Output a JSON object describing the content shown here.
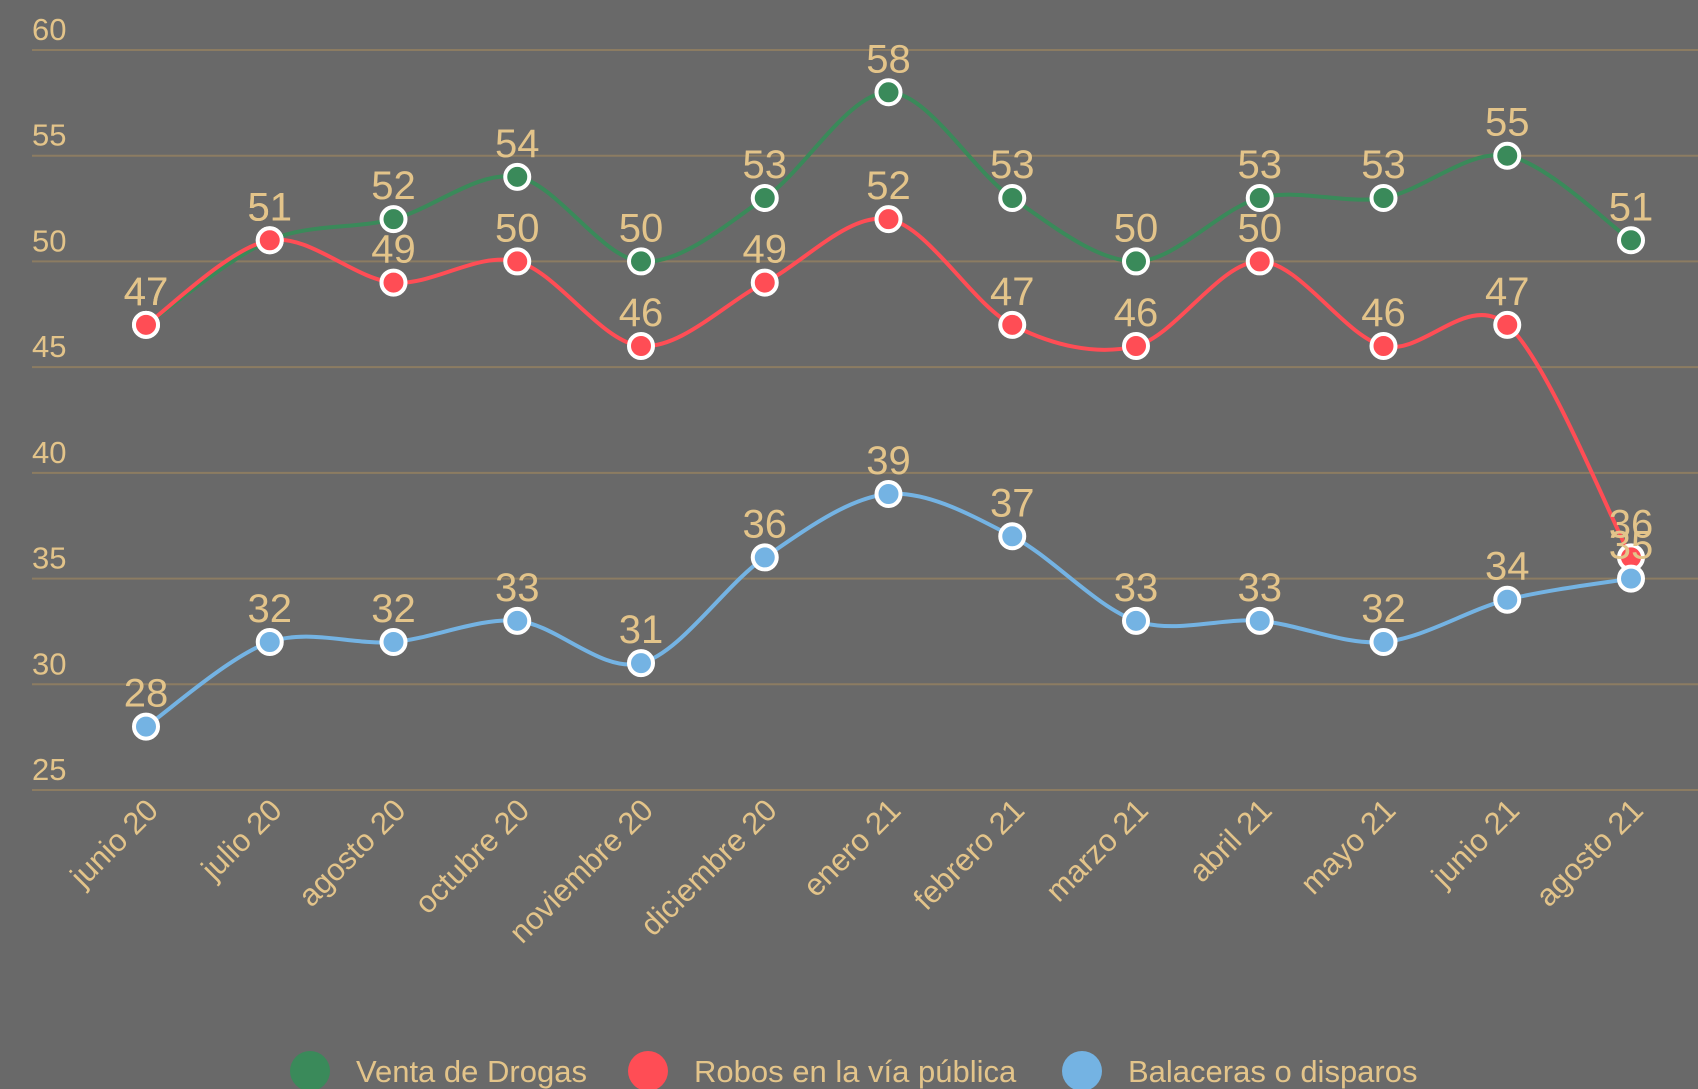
{
  "chart_data": {
    "type": "line",
    "categories": [
      "junio 20",
      "julio 20",
      "agosto 20",
      "octubre 20",
      "noviembre 20",
      "diciembre 20",
      "enero 21",
      "febrero 21",
      "marzo 21",
      "abril 21",
      "mayo 21",
      "junio 21",
      "agosto 21"
    ],
    "series": [
      {
        "name": "Venta de Drogas",
        "color": "#3a8a5a",
        "values": [
          47,
          51,
          52,
          54,
          50,
          53,
          58,
          53,
          50,
          53,
          53,
          55,
          51
        ]
      },
      {
        "name": "Robos en la vía pública",
        "color": "#ff4d55",
        "values": [
          47,
          51,
          49,
          50,
          46,
          49,
          52,
          47,
          46,
          50,
          46,
          47,
          36
        ]
      },
      {
        "name": "Balaceras o disparos",
        "color": "#74b3e3",
        "values": [
          28,
          32,
          32,
          33,
          31,
          36,
          39,
          37,
          33,
          33,
          32,
          34,
          35
        ]
      }
    ],
    "ylim": [
      25,
      60
    ],
    "yticks": [
      25,
      30,
      35,
      40,
      45,
      50,
      55,
      60
    ],
    "grid": true,
    "legend": "bottom"
  }
}
